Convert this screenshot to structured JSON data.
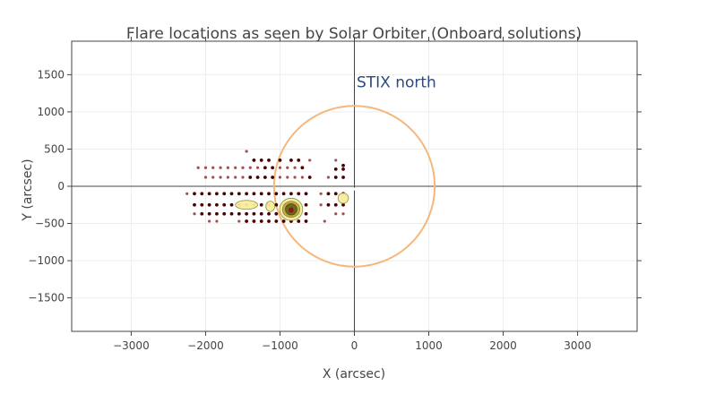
{
  "chart_data": {
    "type": "scatter",
    "title": "Flare locations as seen by Solar Orbiter (Onboard solutions)",
    "xlabel": "X (arcsec)",
    "ylabel": "Y (arcsec)",
    "xlim": [
      -3800,
      3800
    ],
    "ylim": [
      -1950,
      1950
    ],
    "xticks": [
      -3000,
      -2000,
      -1000,
      0,
      1000,
      2000,
      3000
    ],
    "yticks": [
      -1500,
      -1000,
      -500,
      0,
      500,
      1000,
      1500
    ],
    "xtick_labels": [
      "−3000",
      "−2000",
      "−1000",
      "0",
      "1000",
      "2000",
      "3000"
    ],
    "ytick_labels": [
      "−1500",
      "−1000",
      "−500",
      "0",
      "500",
      "1000",
      "1500"
    ],
    "grid": true,
    "solar_disk": {
      "center": [
        0,
        0
      ],
      "radius": 1080,
      "color": "#f5b87a"
    },
    "annotation": {
      "text": "STIX north",
      "x": 30,
      "y": 1330
    },
    "colors": {
      "dark": "#4a0000",
      "light": "#a05050",
      "contour_fill": "#f7eea0",
      "contour_line": "#8a8a2a",
      "core": "#8b1a1a"
    },
    "points": [
      [
        -2100,
        250,
        1
      ],
      [
        -2000,
        250,
        1
      ],
      [
        -1900,
        250,
        1
      ],
      [
        -1800,
        250,
        1
      ],
      [
        -1700,
        250,
        1
      ],
      [
        -1600,
        250,
        1
      ],
      [
        -1500,
        250,
        1
      ],
      [
        -1400,
        250,
        1
      ],
      [
        -1300,
        250,
        1
      ],
      [
        -1200,
        250,
        0
      ],
      [
        -1100,
        250,
        0
      ],
      [
        -1000,
        250,
        1
      ],
      [
        -900,
        250,
        1
      ],
      [
        -800,
        250,
        1
      ],
      [
        -700,
        250,
        0
      ],
      [
        -1450,
        470,
        1
      ],
      [
        -1350,
        350,
        0
      ],
      [
        -1250,
        350,
        0
      ],
      [
        -1150,
        350,
        0
      ],
      [
        -1000,
        350,
        0
      ],
      [
        -850,
        350,
        0
      ],
      [
        -750,
        350,
        0
      ],
      [
        -600,
        350,
        1
      ],
      [
        -2000,
        120,
        1
      ],
      [
        -1900,
        120,
        1
      ],
      [
        -1800,
        120,
        1
      ],
      [
        -1700,
        120,
        1
      ],
      [
        -1600,
        120,
        1
      ],
      [
        -1500,
        120,
        1
      ],
      [
        -1400,
        120,
        0
      ],
      [
        -1300,
        120,
        0
      ],
      [
        -1200,
        120,
        0
      ],
      [
        -1100,
        120,
        0
      ],
      [
        -1000,
        120,
        1
      ],
      [
        -900,
        120,
        1
      ],
      [
        -800,
        120,
        1
      ],
      [
        -700,
        120,
        1
      ],
      [
        -600,
        120,
        0
      ],
      [
        -2250,
        -100,
        1
      ],
      [
        -2150,
        -100,
        0
      ],
      [
        -2050,
        -100,
        0
      ],
      [
        -1950,
        -100,
        0
      ],
      [
        -1850,
        -100,
        0
      ],
      [
        -1750,
        -100,
        0
      ],
      [
        -1650,
        -100,
        0
      ],
      [
        -1550,
        -100,
        0
      ],
      [
        -1450,
        -100,
        0
      ],
      [
        -1350,
        -100,
        0
      ],
      [
        -1250,
        -100,
        0
      ],
      [
        -1150,
        -100,
        0
      ],
      [
        -1050,
        -100,
        0
      ],
      [
        -950,
        -100,
        0
      ],
      [
        -850,
        -100,
        0
      ],
      [
        -750,
        -100,
        0
      ],
      [
        -650,
        -100,
        0
      ],
      [
        -2150,
        -250,
        0
      ],
      [
        -2050,
        -250,
        0
      ],
      [
        -1950,
        -250,
        0
      ],
      [
        -1850,
        -250,
        0
      ],
      [
        -1750,
        -250,
        0
      ],
      [
        -1650,
        -250,
        0
      ],
      [
        -1550,
        -250,
        0
      ],
      [
        -1450,
        -250,
        0
      ],
      [
        -1350,
        -250,
        0
      ],
      [
        -1250,
        -250,
        0
      ],
      [
        -1150,
        -250,
        0
      ],
      [
        -1050,
        -250,
        0
      ],
      [
        -950,
        -250,
        0
      ],
      [
        -850,
        -250,
        0
      ],
      [
        -750,
        -250,
        0
      ],
      [
        -650,
        -250,
        0
      ],
      [
        -2150,
        -370,
        1
      ],
      [
        -2050,
        -370,
        0
      ],
      [
        -1950,
        -370,
        0
      ],
      [
        -1850,
        -370,
        0
      ],
      [
        -1750,
        -370,
        0
      ],
      [
        -1650,
        -370,
        0
      ],
      [
        -1550,
        -370,
        0
      ],
      [
        -1450,
        -370,
        0
      ],
      [
        -1350,
        -370,
        0
      ],
      [
        -1250,
        -370,
        0
      ],
      [
        -1150,
        -370,
        0
      ],
      [
        -1050,
        -370,
        0
      ],
      [
        -950,
        -370,
        0
      ],
      [
        -850,
        -370,
        0
      ],
      [
        -750,
        -370,
        0
      ],
      [
        -650,
        -370,
        0
      ],
      [
        -1950,
        -470,
        1
      ],
      [
        -1850,
        -470,
        1
      ],
      [
        -1550,
        -470,
        1
      ],
      [
        -1450,
        -470,
        0
      ],
      [
        -1350,
        -470,
        0
      ],
      [
        -1250,
        -470,
        0
      ],
      [
        -1150,
        -470,
        0
      ],
      [
        -1050,
        -470,
        0
      ],
      [
        -950,
        -470,
        0
      ],
      [
        -850,
        -470,
        0
      ],
      [
        -750,
        -470,
        0
      ],
      [
        -650,
        -470,
        0
      ],
      [
        -400,
        -470,
        1
      ],
      [
        -250,
        350,
        1
      ],
      [
        -150,
        280,
        0
      ],
      [
        -250,
        230,
        0
      ],
      [
        -150,
        230,
        0
      ],
      [
        -250,
        120,
        0
      ],
      [
        -150,
        120,
        0
      ],
      [
        -350,
        120,
        1
      ],
      [
        -450,
        -100,
        1
      ],
      [
        -350,
        -100,
        0
      ],
      [
        -250,
        -100,
        0
      ],
      [
        -150,
        -100,
        0
      ],
      [
        -350,
        -250,
        0
      ],
      [
        -250,
        -250,
        0
      ],
      [
        -150,
        -250,
        0
      ],
      [
        -450,
        -250,
        1
      ],
      [
        -250,
        -370,
        1
      ],
      [
        -150,
        -370,
        1
      ]
    ],
    "contours": [
      {
        "x": -1450,
        "y": -250,
        "rx": 150,
        "ry": 60
      },
      {
        "x": -1130,
        "y": -270,
        "rx": 60,
        "ry": 70
      },
      {
        "x": -850,
        "y": -310,
        "rx": 155,
        "ry": 150
      },
      {
        "x": -150,
        "y": -160,
        "rx": 70,
        "ry": 70
      }
    ]
  }
}
